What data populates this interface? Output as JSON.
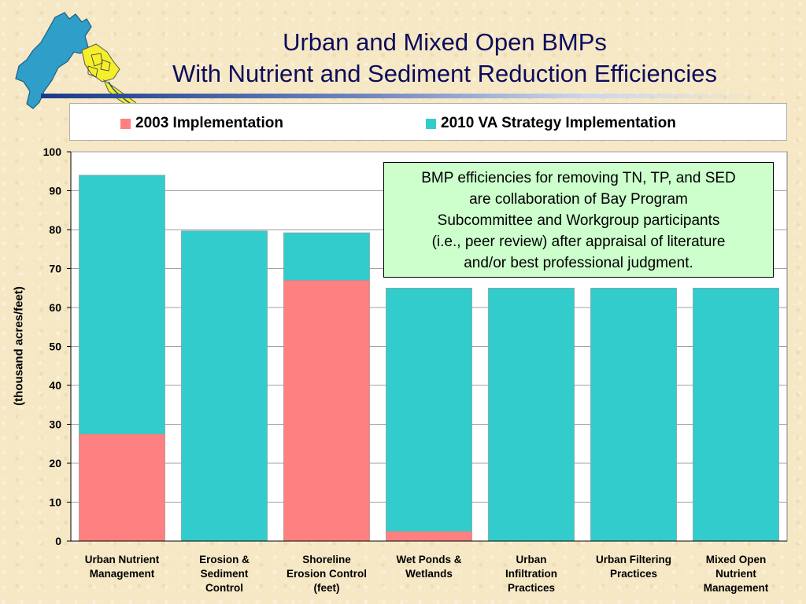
{
  "title": {
    "line1": "Urban and Mixed Open BMPs",
    "line2": "With Nutrient and Sediment Reduction Efficiencies"
  },
  "icons": {
    "logo": "chesapeake-bay-watershed-map-icon"
  },
  "colors": {
    "series_2003": "#ff8080",
    "series_2010": "#33cccc",
    "title": "#0c0c5c",
    "note_bg": "#ccffcc"
  },
  "note": {
    "lines": [
      "BMP efficiencies for removing TN, TP, and SED",
      "are collaboration of Bay Program",
      "Subcommittee and Workgroup participants",
      "(i.e., peer review) after appraisal of literature",
      "and/or best professional judgment."
    ]
  },
  "chart_data": {
    "type": "bar",
    "stacked": true,
    "title": "",
    "xlabel": "",
    "ylabel": "(thousand acres/feet)",
    "ylim": [
      0,
      100
    ],
    "yticks": [
      0,
      10,
      20,
      30,
      40,
      50,
      60,
      70,
      80,
      90,
      100
    ],
    "grid": true,
    "legend_position": "top",
    "categories": [
      [
        "Urban Nutrient",
        "Management"
      ],
      [
        "Erosion &",
        "Sediment",
        "Control"
      ],
      [
        "Shoreline",
        "Erosion Control",
        "(feet)"
      ],
      [
        "Wet Ponds &",
        "Wetlands"
      ],
      [
        "Urban",
        "Infiltration",
        "Practices"
      ],
      [
        "Urban Filtering",
        "Practices"
      ],
      [
        "Mixed Open",
        "Nutrient",
        "Management"
      ]
    ],
    "series": [
      {
        "name": "2003 Implementation",
        "color": "#ff8080",
        "values": [
          27.5,
          0,
          67,
          2.5,
          0,
          0,
          0
        ]
      },
      {
        "name": "2010 VA Strategy Implementation",
        "color": "#33cccc",
        "values": [
          66.5,
          79.7,
          12.2,
          62.5,
          65,
          65,
          65
        ]
      }
    ]
  }
}
